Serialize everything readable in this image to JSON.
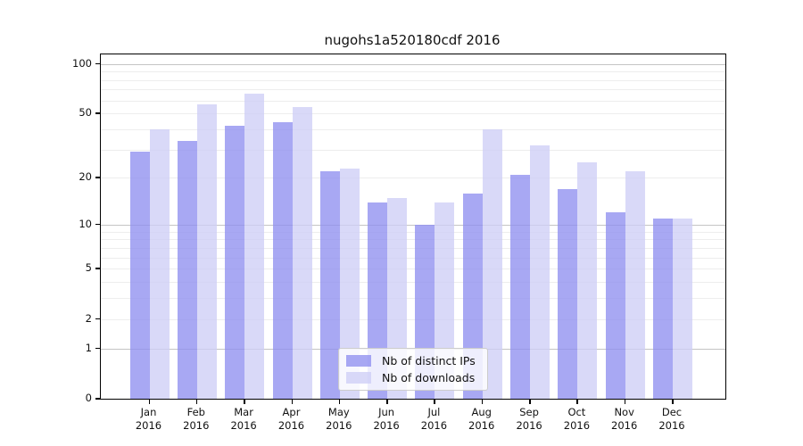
{
  "chart_data": {
    "type": "bar",
    "title": "nugohs1a520180cdf 2016",
    "yscale": "log1p",
    "grid": "horizontal",
    "x_month_labels": [
      "Jan",
      "Feb",
      "Mar",
      "Apr",
      "May",
      "Jun",
      "Jul",
      "Aug",
      "Sep",
      "Oct",
      "Nov",
      "Dec"
    ],
    "x_year_label": "2016",
    "categories": [
      "Jan 2016",
      "Feb 2016",
      "Mar 2016",
      "Apr 2016",
      "May 2016",
      "Jun 2016",
      "Jul 2016",
      "Aug 2016",
      "Sep 2016",
      "Oct 2016",
      "Nov 2016",
      "Dec 2016"
    ],
    "series": [
      {
        "name": "Nb of distinct IPs",
        "color": "#8f8ff0",
        "opacity": 0.78,
        "values": [
          29,
          34,
          42,
          44,
          22,
          14,
          10,
          16,
          21,
          17,
          12,
          11
        ]
      },
      {
        "name": "Nb of downloads",
        "color": "#cecef6",
        "opacity": 0.78,
        "values": [
          40,
          57,
          66,
          55,
          23,
          15,
          14,
          40,
          32,
          25,
          22,
          11
        ]
      }
    ],
    "y_tick_values": [
      0,
      1,
      2,
      5,
      10,
      20,
      50,
      100
    ],
    "y_major_gridlines": [
      1,
      10,
      100
    ],
    "y_minor_gridlines": [
      2,
      3,
      4,
      5,
      6,
      7,
      8,
      9,
      20,
      30,
      40,
      50,
      60,
      70,
      80,
      90
    ],
    "ylim": [
      0,
      114
    ],
    "legend_position": "lower center"
  },
  "colors": {
    "grid_minor": "#ededed",
    "grid_major": "#c4c4c4",
    "spine": "#000000",
    "background": "#ffffff",
    "legend_border": "#cccccc"
  }
}
